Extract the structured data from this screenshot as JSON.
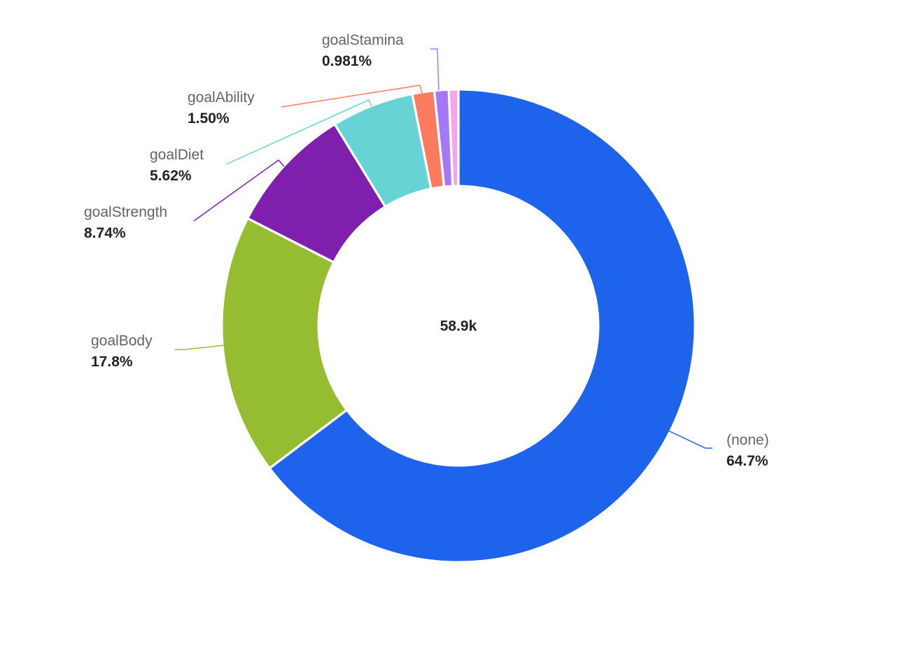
{
  "chart_data": {
    "type": "pie",
    "variant": "donut",
    "center_label": "58.9k",
    "title": "",
    "series": [
      {
        "name": "(none)",
        "percent_label": "64.7%",
        "value": 64.7,
        "color": "#1e63ec"
      },
      {
        "name": "goalBody",
        "percent_label": "17.8%",
        "value": 17.8,
        "color": "#96bd31"
      },
      {
        "name": "goalStrength",
        "percent_label": "8.74%",
        "value": 8.74,
        "color": "#7e20ad"
      },
      {
        "name": "goalDiet",
        "percent_label": "5.62%",
        "value": 5.62,
        "color": "#67d3d4"
      },
      {
        "name": "goalAbility",
        "percent_label": "1.50%",
        "value": 1.5,
        "color": "#fc7a5e"
      },
      {
        "name": "goalStamina",
        "percent_label": "0.981%",
        "value": 0.981,
        "color": "#a778f6"
      },
      {
        "name": "",
        "percent_label": "",
        "value": 0.65,
        "color": "#f7a5ea"
      }
    ]
  }
}
